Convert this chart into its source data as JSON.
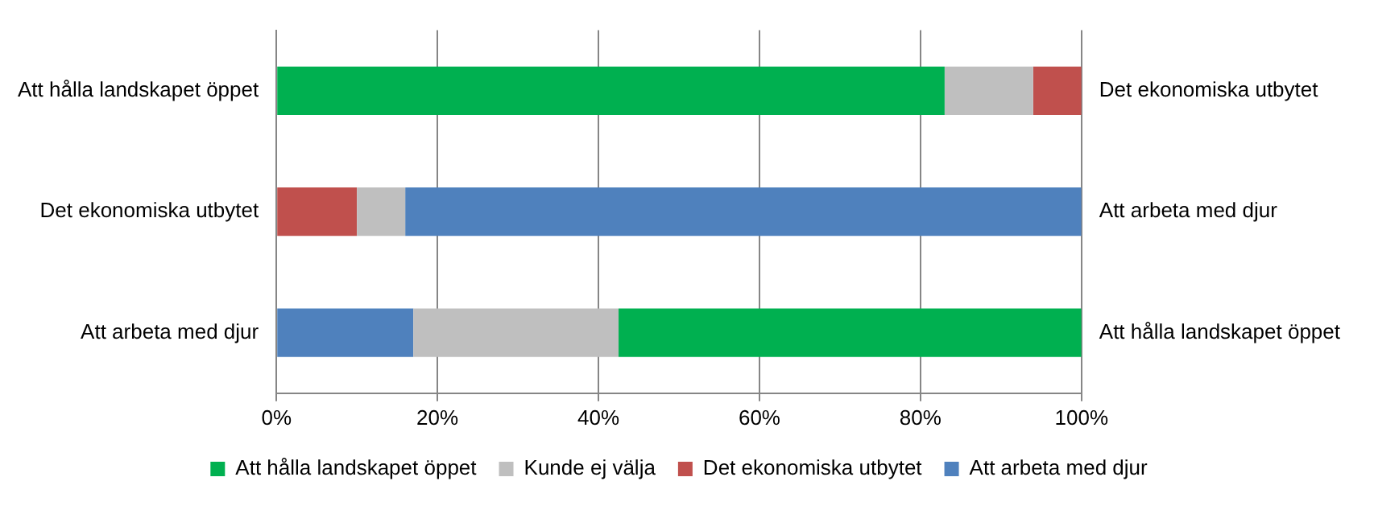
{
  "chart_data": {
    "type": "bar",
    "orientation": "horizontal",
    "categories": [
      "Att hålla landskapet öppet",
      "Det ekonomiska utbytet",
      "Att arbeta med djur"
    ],
    "y2_categories": [
      "Det ekonomiska utbytet",
      "Att arbeta med djur",
      "Att hålla landskapet öppet"
    ],
    "series": [
      {
        "name": "Att hålla landskapet öppet",
        "color": "#00b050",
        "values": [
          83,
          null,
          57.5
        ],
        "base": [
          0,
          null,
          42.5
        ]
      },
      {
        "name": "Kunde ej välja",
        "color": "#bfbfbf",
        "values": [
          11,
          6,
          25.5
        ],
        "base": [
          83,
          10,
          17
        ]
      },
      {
        "name": "Det ekonomiska utbytet",
        "color": "#c0504d",
        "values": [
          6,
          10,
          null
        ],
        "base": [
          94,
          0,
          null
        ]
      },
      {
        "name": "Att arbeta med djur",
        "color": "#4f81bd",
        "values": [
          null,
          84,
          17
        ],
        "base": [
          null,
          16,
          0
        ]
      }
    ],
    "xlim": [
      0,
      100
    ],
    "xticks": [
      {
        "value": 0,
        "label": "0%"
      },
      {
        "value": 20,
        "label": "20%"
      },
      {
        "value": 40,
        "label": "40%"
      },
      {
        "value": 60,
        "label": "60%"
      },
      {
        "value": 80,
        "label": "80%"
      },
      {
        "value": 100,
        "label": "100%"
      }
    ],
    "grid": "x",
    "legend": "bottom"
  }
}
